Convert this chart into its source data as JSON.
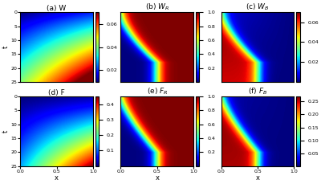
{
  "titles": [
    "(a) W",
    "(b) $W_R$",
    "(c) $W_B$",
    "(d) F",
    "(e) $F_R$",
    "(f) $F_B$"
  ],
  "xlabel": "x",
  "ylabel": "t",
  "yticks": [
    0,
    5,
    10,
    15,
    20,
    25
  ],
  "xticks": [
    0,
    0.5,
    1
  ],
  "colorbar_ticks": [
    [
      0.02,
      0.04,
      0.06
    ],
    [
      0.2,
      0.4,
      0.6,
      0.8,
      1.0
    ],
    [
      0.02,
      0.04,
      0.06
    ],
    [
      0.1,
      0.2,
      0.3,
      0.4
    ],
    [
      0.2,
      0.4,
      0.6,
      0.8,
      1.0
    ],
    [
      0.05,
      0.1,
      0.15,
      0.2,
      0.25
    ]
  ],
  "clim": [
    [
      0.01,
      0.07
    ],
    [
      0.0,
      1.0
    ],
    [
      0.0,
      0.07
    ],
    [
      0.0,
      0.45
    ],
    [
      0.0,
      1.0
    ],
    [
      0.0,
      0.27
    ]
  ],
  "cmap": "jet",
  "nx": 200,
  "nt": 200,
  "figsize": [
    4.0,
    2.29
  ],
  "dpi": 100
}
